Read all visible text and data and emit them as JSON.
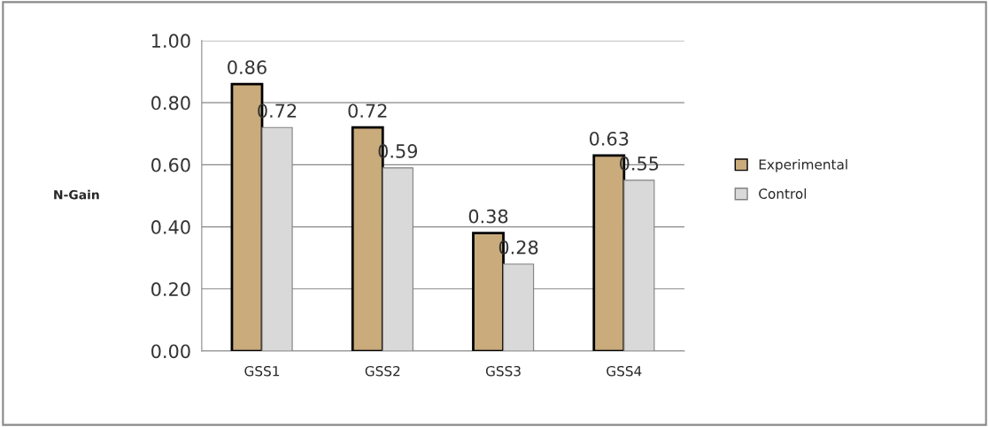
{
  "chart_data": {
    "type": "bar",
    "ylabel": "N-Gain",
    "categories": [
      "GSS1",
      "GSS2",
      "GSS3",
      "GSS4"
    ],
    "series": [
      {
        "name": "Experimental",
        "color": "#c9ab7c",
        "values": [
          0.86,
          0.72,
          0.38,
          0.63
        ]
      },
      {
        "name": "Control",
        "color": "#d9d9d9",
        "values": [
          0.72,
          0.59,
          0.28,
          0.55
        ]
      }
    ],
    "ylim": [
      0,
      1
    ],
    "yticks": [
      {
        "value": 0,
        "label": "0.00"
      },
      {
        "value": 0.2,
        "label": "0.20"
      },
      {
        "value": 0.4,
        "label": "0.40"
      },
      {
        "value": 0.6,
        "label": "0.60"
      },
      {
        "value": 0.8,
        "label": "0.80"
      },
      {
        "value": 1,
        "label": "1.00"
      }
    ],
    "grid": "y",
    "legend": "right",
    "data_labels": true
  }
}
